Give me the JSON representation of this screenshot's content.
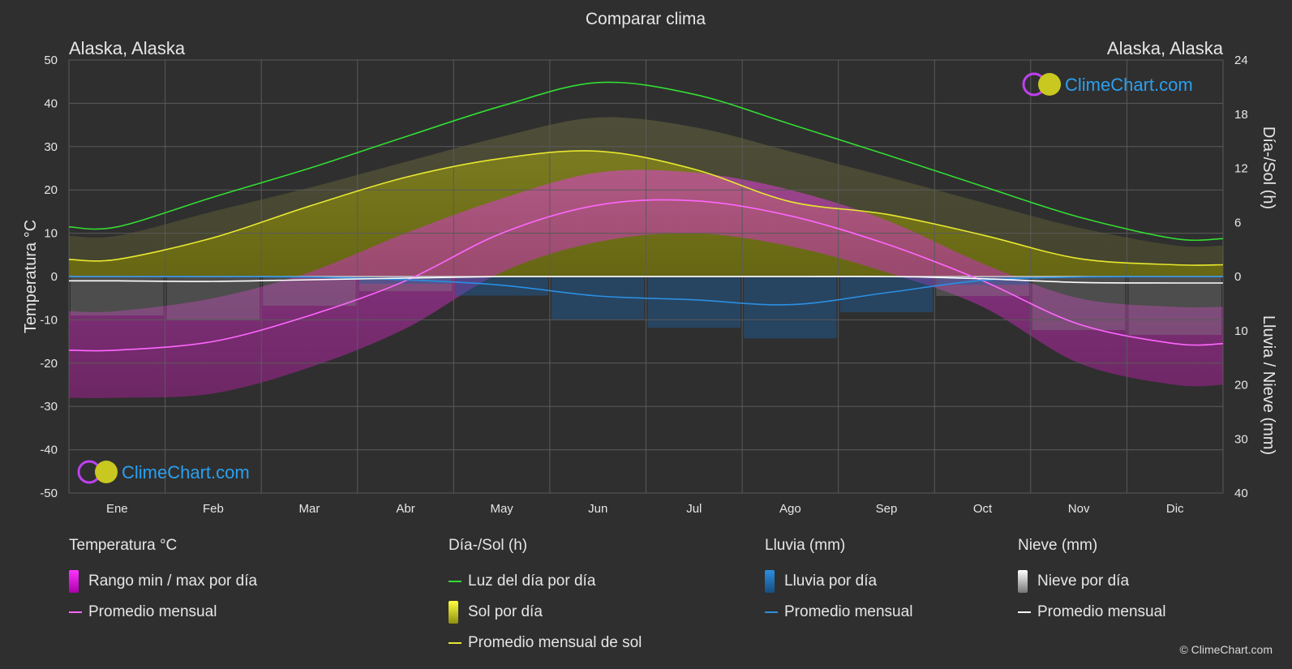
{
  "title": "Comparar clima",
  "location_left": "Alaska, Alaska",
  "location_right": "Alaska, Alaska",
  "brand": "ClimeChart.com",
  "copyright": "© ClimeChart.com",
  "colors": {
    "background": "#2f2f2f",
    "daylight": "#33dd33",
    "sun_avg": "#e8e830",
    "sun_fill": "#a8a820",
    "temp_avg": "#ff66ff",
    "temp_range": "#d030c8",
    "rain_avg": "#2a8fe0",
    "rain_bar": "#2060a0",
    "snow_avg": "#ffffff",
    "snow_bar": "#888888",
    "grid": "#5a5a5a",
    "brand_text": "#2aa0f0"
  },
  "legend": {
    "temp": {
      "title": "Temperatura °C",
      "range": "Rango min / max por día",
      "avg": "Promedio mensual"
    },
    "sun": {
      "title": "Día-/Sol (h)",
      "daylight": "Luz del día por día",
      "sun": "Sol por día",
      "avg": "Promedio mensual de sol"
    },
    "rain": {
      "title": "Lluvia (mm)",
      "day": "Lluvia por día",
      "avg": "Promedio mensual"
    },
    "snow": {
      "title": "Nieve (mm)",
      "day": "Nieve por día",
      "avg": "Promedio mensual"
    }
  },
  "chart_data": {
    "type": "line",
    "categories": [
      "Ene",
      "Feb",
      "Mar",
      "Abr",
      "May",
      "Jun",
      "Jul",
      "Ago",
      "Sep",
      "Oct",
      "Nov",
      "Dic"
    ],
    "y_left": {
      "label": "Temperatura °C",
      "ticks": [
        "50",
        "40",
        "30",
        "20",
        "10",
        "0",
        "-10",
        "-20",
        "-30",
        "-40",
        "-50"
      ],
      "range": [
        -50,
        50
      ]
    },
    "y_right_top": {
      "label": "Día-/Sol (h)",
      "ticks": [
        "24",
        "18",
        "12",
        "6",
        "0"
      ],
      "range": [
        0,
        24
      ]
    },
    "y_right_bottom": {
      "label": "Lluvia / Nieve (mm)",
      "ticks": [
        "10",
        "20",
        "30",
        "40"
      ],
      "range": [
        0,
        40
      ]
    },
    "series": [
      {
        "key": "daylight",
        "unit": "h",
        "values": [
          5.5,
          8.8,
          12.0,
          15.5,
          18.9,
          21.5,
          20.2,
          16.9,
          13.5,
          10.0,
          6.6,
          4.2
        ]
      },
      {
        "key": "sun",
        "unit": "h",
        "values": [
          1.9,
          4.3,
          7.8,
          11.0,
          13.1,
          13.9,
          11.9,
          8.3,
          6.9,
          4.6,
          2.0,
          1.3
        ]
      },
      {
        "key": "temp_avg",
        "unit": "°C",
        "values": [
          -17.0,
          -15.0,
          -9.0,
          -1.0,
          10.0,
          16.5,
          17.5,
          14.0,
          7.5,
          -1.0,
          -11.0,
          -15.5
        ]
      },
      {
        "key": "temp_max",
        "unit": "°C",
        "values": [
          -8,
          -5,
          1,
          10,
          18,
          24,
          24,
          20,
          13,
          3,
          -5,
          -7
        ]
      },
      {
        "key": "temp_min",
        "unit": "°C",
        "values": [
          -28,
          -27,
          -21,
          -12,
          1,
          8,
          10,
          7,
          1,
          -7,
          -20,
          -25
        ]
      },
      {
        "key": "rain_avg",
        "unit": "mm",
        "values": [
          0.0,
          0.0,
          0.1,
          0.6,
          1.6,
          3.6,
          4.3,
          5.2,
          3.0,
          0.7,
          0.1,
          0.0
        ]
      },
      {
        "key": "snow_avg",
        "unit": "mm",
        "values": [
          0.8,
          0.9,
          0.6,
          0.3,
          0.0,
          0.0,
          0.0,
          0.0,
          0.0,
          0.4,
          1.1,
          1.2
        ]
      }
    ]
  }
}
